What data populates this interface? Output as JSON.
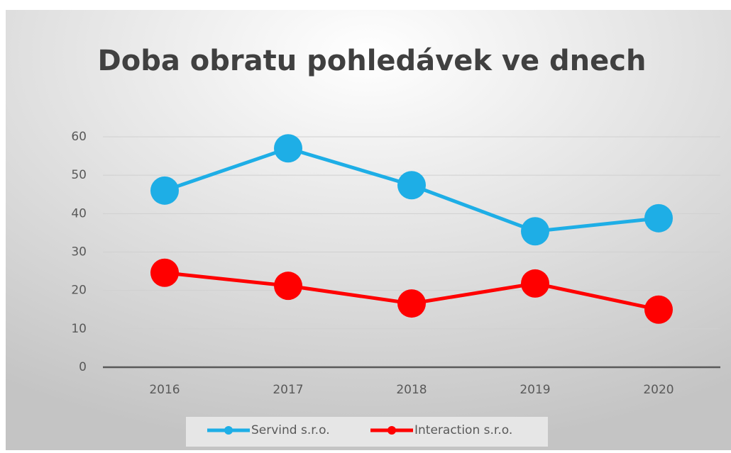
{
  "chart_data": {
    "type": "line",
    "title": "Doba obratu pohledávek ve dnech",
    "categories": [
      "2016",
      "2017",
      "2018",
      "2019",
      "2020"
    ],
    "series": [
      {
        "name": "Servind s.r.o.",
        "color": "#1eaee6",
        "values": [
          46.0,
          57.0,
          47.4,
          35.4,
          38.8
        ]
      },
      {
        "name": "Interaction s.r.o.",
        "color": "#ff0000",
        "values": [
          24.6,
          21.2,
          16.6,
          21.8,
          15.0
        ]
      }
    ],
    "ylim": [
      0,
      60
    ],
    "yticks": [
      0,
      10,
      20,
      30,
      40,
      50,
      60
    ],
    "grid": true,
    "legend": "bottom"
  }
}
